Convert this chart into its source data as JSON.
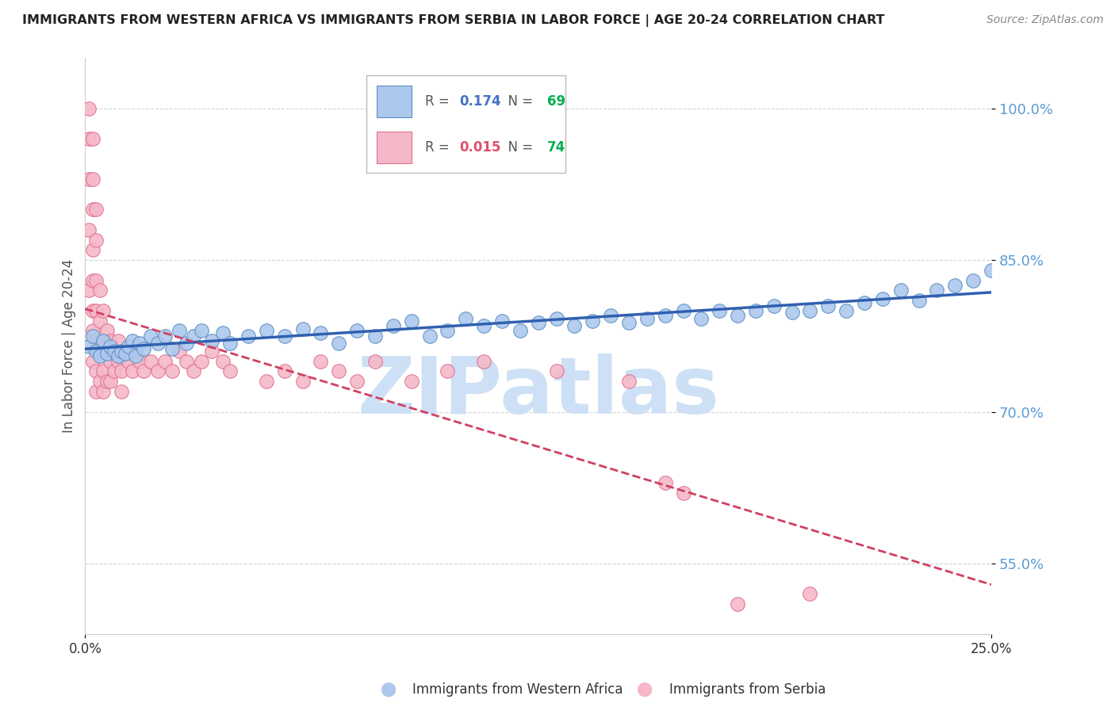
{
  "title": "IMMIGRANTS FROM WESTERN AFRICA VS IMMIGRANTS FROM SERBIA IN LABOR FORCE | AGE 20-24 CORRELATION CHART",
  "source": "Source: ZipAtlas.com",
  "ylabel": "In Labor Force | Age 20-24",
  "y_ticks": [
    0.55,
    0.7,
    0.85,
    1.0
  ],
  "y_tick_labels": [
    "55.0%",
    "70.0%",
    "85.0%",
    "100.0%"
  ],
  "xlim": [
    0.0,
    0.25
  ],
  "ylim": [
    0.48,
    1.05
  ],
  "legend1_r": "0.174",
  "legend1_n": "69",
  "legend2_r": "0.015",
  "legend2_n": "74",
  "legend1_label": "Immigrants from Western Africa",
  "legend2_label": "Immigrants from Serbia",
  "blue_fill": "#adc8ed",
  "blue_edge": "#5b8ec4",
  "pink_fill": "#f5b8c8",
  "pink_edge": "#e07090",
  "blue_line": "#3060b0",
  "pink_line": "#d04060",
  "watermark": "ZIPatlas",
  "watermark_color": "#cde0f5",
  "blue_x": [
    0.001,
    0.002,
    0.003,
    0.004,
    0.005,
    0.006,
    0.007,
    0.008,
    0.009,
    0.01,
    0.011,
    0.012,
    0.013,
    0.014,
    0.015,
    0.016,
    0.018,
    0.02,
    0.022,
    0.024,
    0.026,
    0.028,
    0.03,
    0.032,
    0.035,
    0.038,
    0.04,
    0.045,
    0.05,
    0.055,
    0.06,
    0.065,
    0.07,
    0.075,
    0.08,
    0.085,
    0.09,
    0.095,
    0.1,
    0.105,
    0.11,
    0.115,
    0.12,
    0.125,
    0.13,
    0.135,
    0.14,
    0.145,
    0.15,
    0.155,
    0.16,
    0.165,
    0.17,
    0.175,
    0.18,
    0.185,
    0.19,
    0.195,
    0.2,
    0.205,
    0.21,
    0.215,
    0.22,
    0.225,
    0.23,
    0.235,
    0.24,
    0.245,
    0.25
  ],
  "blue_y": [
    0.765,
    0.775,
    0.76,
    0.755,
    0.77,
    0.758,
    0.765,
    0.76,
    0.755,
    0.76,
    0.758,
    0.765,
    0.77,
    0.755,
    0.768,
    0.762,
    0.775,
    0.768,
    0.775,
    0.762,
    0.78,
    0.768,
    0.775,
    0.78,
    0.77,
    0.778,
    0.768,
    0.775,
    0.78,
    0.775,
    0.782,
    0.778,
    0.768,
    0.78,
    0.775,
    0.785,
    0.79,
    0.775,
    0.78,
    0.792,
    0.785,
    0.79,
    0.78,
    0.788,
    0.792,
    0.785,
    0.79,
    0.795,
    0.788,
    0.792,
    0.795,
    0.8,
    0.792,
    0.8,
    0.795,
    0.8,
    0.805,
    0.798,
    0.8,
    0.805,
    0.8,
    0.808,
    0.812,
    0.82,
    0.81,
    0.82,
    0.825,
    0.83,
    0.84
  ],
  "pink_x": [
    0.001,
    0.001,
    0.001,
    0.001,
    0.001,
    0.002,
    0.002,
    0.002,
    0.002,
    0.002,
    0.002,
    0.002,
    0.002,
    0.003,
    0.003,
    0.003,
    0.003,
    0.003,
    0.003,
    0.003,
    0.004,
    0.004,
    0.004,
    0.004,
    0.005,
    0.005,
    0.005,
    0.005,
    0.006,
    0.006,
    0.006,
    0.007,
    0.007,
    0.007,
    0.008,
    0.008,
    0.009,
    0.009,
    0.01,
    0.01,
    0.01,
    0.011,
    0.012,
    0.013,
    0.014,
    0.015,
    0.016,
    0.018,
    0.02,
    0.022,
    0.024,
    0.026,
    0.028,
    0.03,
    0.032,
    0.035,
    0.038,
    0.04,
    0.05,
    0.055,
    0.06,
    0.065,
    0.07,
    0.075,
    0.08,
    0.09,
    0.1,
    0.11,
    0.13,
    0.15,
    0.16,
    0.165,
    0.18,
    0.2
  ],
  "pink_y": [
    1.0,
    0.97,
    0.93,
    0.88,
    0.82,
    0.97,
    0.93,
    0.9,
    0.86,
    0.83,
    0.8,
    0.78,
    0.75,
    0.9,
    0.87,
    0.83,
    0.8,
    0.77,
    0.74,
    0.72,
    0.82,
    0.79,
    0.76,
    0.73,
    0.8,
    0.77,
    0.74,
    0.72,
    0.78,
    0.76,
    0.73,
    0.77,
    0.75,
    0.73,
    0.76,
    0.74,
    0.77,
    0.75,
    0.76,
    0.74,
    0.72,
    0.76,
    0.75,
    0.74,
    0.76,
    0.75,
    0.74,
    0.75,
    0.74,
    0.75,
    0.74,
    0.76,
    0.75,
    0.74,
    0.75,
    0.76,
    0.75,
    0.74,
    0.73,
    0.74,
    0.73,
    0.75,
    0.74,
    0.73,
    0.75,
    0.73,
    0.74,
    0.75,
    0.74,
    0.73,
    0.63,
    0.62,
    0.51,
    0.52
  ]
}
